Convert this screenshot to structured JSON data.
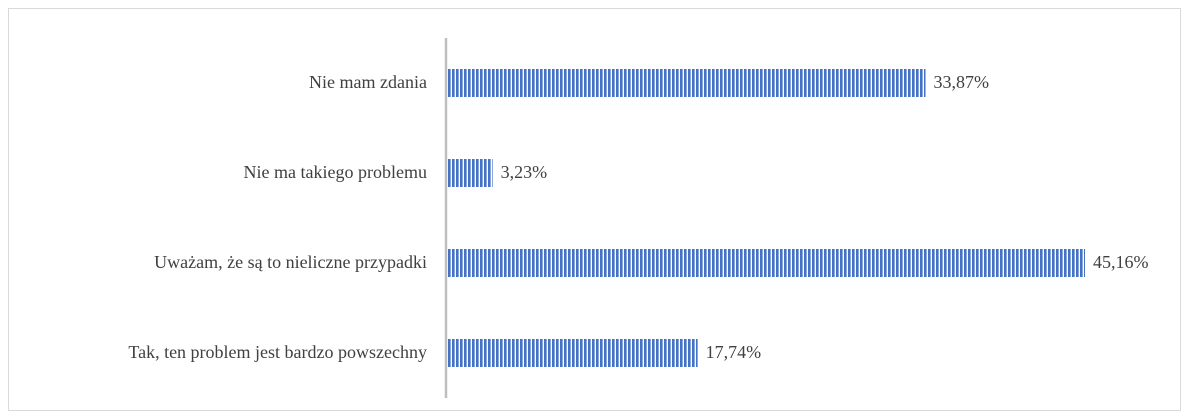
{
  "chart_data": {
    "type": "bar",
    "orientation": "horizontal",
    "categories": [
      "Nie mam zdania",
      "Nie ma takiego problemu",
      "Uważam, że są to nieliczne przypadki",
      "Tak, ten problem jest bardzo powszechny"
    ],
    "values": [
      33.87,
      3.23,
      45.16,
      17.74
    ],
    "value_labels": [
      "33,87%",
      "3,23%",
      "45,16%",
      "17,74%"
    ],
    "color": "#4472c4"
  }
}
